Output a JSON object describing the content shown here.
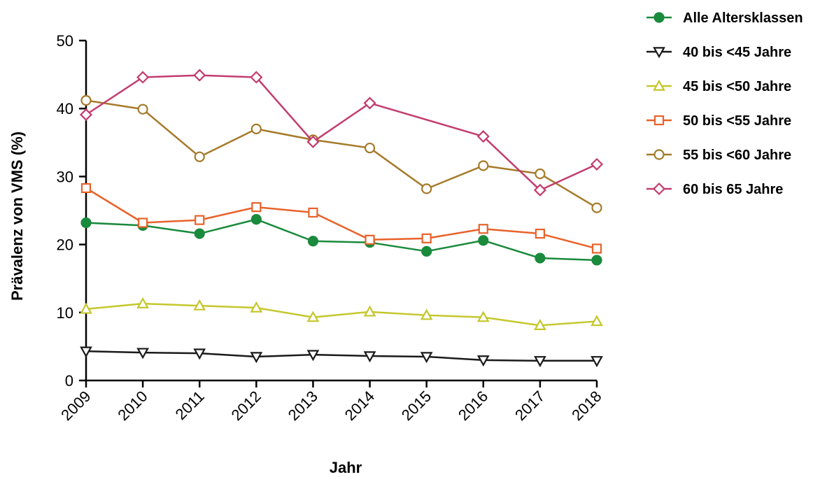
{
  "chart_data": {
    "type": "line",
    "xlabel": "Jahr",
    "ylabel": "Prävalenz von VMS (%)",
    "ylim": [
      0,
      50
    ],
    "yticks": [
      0,
      10,
      20,
      30,
      40,
      50
    ],
    "categories": [
      "2009",
      "2010",
      "2011",
      "2012",
      "2013",
      "2014",
      "2015",
      "2016",
      "2017",
      "2018"
    ],
    "legend_position": "right",
    "grid": false,
    "series": [
      {
        "name": "Alle Altersklassen",
        "marker": "circle-filled",
        "color": "#1a8a3c",
        "values": [
          23.2,
          22.8,
          21.6,
          23.7,
          20.5,
          20.3,
          19.0,
          20.6,
          18.0,
          17.7
        ]
      },
      {
        "name": "40 bis <45 Jahre",
        "marker": "triangle-down-open",
        "color": "#1a1a1a",
        "values": [
          4.3,
          4.1,
          4.0,
          3.5,
          3.8,
          3.6,
          3.5,
          3.0,
          2.9,
          2.9
        ]
      },
      {
        "name": "45 bis <50 Jahre",
        "marker": "triangle-up-open",
        "color": "#c5c72c",
        "values": [
          10.5,
          11.3,
          11.0,
          10.7,
          9.3,
          10.1,
          9.6,
          9.3,
          8.1,
          8.7
        ]
      },
      {
        "name": "50 bis <55 Jahre",
        "marker": "square-open",
        "color": "#e8622a",
        "values": [
          28.3,
          23.2,
          23.6,
          25.5,
          24.7,
          20.7,
          20.9,
          22.3,
          21.6,
          19.4
        ]
      },
      {
        "name": "55 bis <60 Jahre",
        "marker": "circle-open",
        "color": "#a57a2a",
        "values": [
          41.2,
          39.9,
          32.9,
          37.0,
          35.4,
          34.2,
          28.2,
          31.6,
          30.4,
          25.4
        ]
      },
      {
        "name": "60 bis 65 Jahre",
        "marker": "diamond-open",
        "color": "#c23d6e",
        "values": [
          39.1,
          44.6,
          44.9,
          44.6,
          35.1,
          40.8,
          null,
          35.9,
          28.0,
          31.8
        ]
      }
    ]
  }
}
